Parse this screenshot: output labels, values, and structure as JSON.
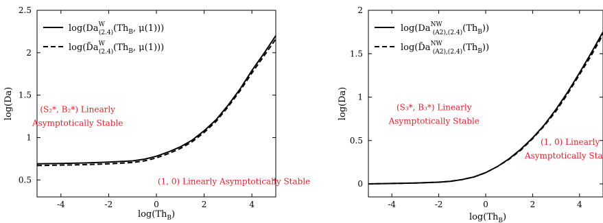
{
  "chart_data": [
    {
      "type": "line",
      "xlabel": "log(Th_B)",
      "ylabel": "log(Da)",
      "xlim": [
        -5,
        5
      ],
      "ylim": [
        0.3,
        2.5
      ],
      "xticks": [
        -4,
        -2,
        0,
        2,
        4
      ],
      "yticks": [
        0.5,
        1,
        1.5,
        2,
        2.5
      ],
      "grid": false,
      "legend_position": "top-left",
      "series": [
        {
          "name": "log(Da^W_(2.4)(Th_B, μ(1)))",
          "style": "solid",
          "color": "#000000",
          "x": [
            -5,
            -4,
            -3,
            -2,
            -1,
            -0.5,
            0,
            0.5,
            1,
            1.5,
            2,
            2.5,
            3,
            3.5,
            4,
            4.5,
            5
          ],
          "y": [
            0.69,
            0.695,
            0.7,
            0.71,
            0.725,
            0.745,
            0.78,
            0.83,
            0.89,
            0.97,
            1.08,
            1.21,
            1.38,
            1.57,
            1.79,
            1.99,
            2.2
          ]
        },
        {
          "name": "log(D̃a^W_(2.4)(Th_B, μ(1)))",
          "style": "dashed",
          "color": "#000000",
          "x": [
            -5,
            -4,
            -3,
            -2,
            -1,
            -0.5,
            0,
            0.5,
            1,
            1.5,
            2,
            2.5,
            3,
            3.5,
            4,
            4.5,
            5
          ],
          "y": [
            0.67,
            0.675,
            0.68,
            0.69,
            0.705,
            0.725,
            0.76,
            0.81,
            0.87,
            0.95,
            1.06,
            1.19,
            1.36,
            1.55,
            1.76,
            1.96,
            2.16
          ]
        }
      ],
      "annotations": [
        {
          "lines": [
            "(S₂*, B₂*) Linearly",
            "Asymptotically Stable"
          ],
          "x": -3.3,
          "y": 1.3
        },
        {
          "lines": [
            "(1, 0) Linearly Asymptotically Stable"
          ],
          "x": 3.25,
          "y": 0.45
        }
      ]
    },
    {
      "type": "line",
      "xlabel": "log(Th_B)",
      "ylabel": "log(Da)",
      "xlim": [
        -5,
        5
      ],
      "ylim": [
        -0.15,
        2
      ],
      "xticks": [
        -4,
        -2,
        0,
        2,
        4
      ],
      "yticks": [
        0,
        0.5,
        1,
        1.5,
        2
      ],
      "grid": false,
      "legend_position": "top-left",
      "series": [
        {
          "name": "log(Da^NW_(A2),(2.4)(Th_B))",
          "style": "solid",
          "color": "#000000",
          "x": [
            -5,
            -4,
            -3,
            -2,
            -1.5,
            -1,
            -0.5,
            0,
            0.5,
            1,
            1.5,
            2,
            2.5,
            3,
            3.5,
            4,
            4.5,
            5
          ],
          "y": [
            0.0,
            0.005,
            0.01,
            0.02,
            0.03,
            0.05,
            0.08,
            0.13,
            0.2,
            0.29,
            0.4,
            0.53,
            0.68,
            0.86,
            1.06,
            1.28,
            1.51,
            1.75
          ]
        },
        {
          "name": "log(D̃a^NW_(A2),(2.4)(Th_B))",
          "style": "dashed",
          "color": "#000000",
          "x": [
            -5,
            -4,
            -3,
            -2,
            -1.5,
            -1,
            -0.5,
            0,
            0.5,
            1,
            1.5,
            2,
            2.5,
            3,
            3.5,
            4,
            4.5,
            5
          ],
          "y": [
            0.0,
            0.005,
            0.01,
            0.02,
            0.03,
            0.05,
            0.08,
            0.13,
            0.2,
            0.285,
            0.39,
            0.52,
            0.67,
            0.84,
            1.04,
            1.26,
            1.48,
            1.72
          ]
        }
      ],
      "annotations": [
        {
          "lines": [
            "(S₃*, B₃*) Linearly",
            "Asymptotically Stable"
          ],
          "x": -2.2,
          "y": 0.85
        },
        {
          "lines": [
            "(1, 0) Linearly",
            "Asymptotically Stable"
          ],
          "x": 3.6,
          "y": 0.45
        }
      ]
    }
  ]
}
